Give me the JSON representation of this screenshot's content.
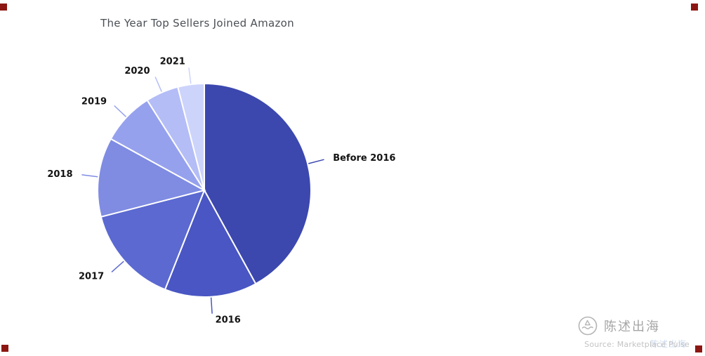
{
  "theme": {
    "background": "#ffffff",
    "title_color": "#4b4f55",
    "label_color": "#121212",
    "corner_mark": "#8c1712",
    "watermark_gray": "#a5a5a5",
    "source_gray": "#c3c3c3"
  },
  "chart_data": {
    "type": "pie",
    "title": "The Year Top Sellers Joined Amazon",
    "categories": [
      "Before 2016",
      "2016",
      "2017",
      "2018",
      "2019",
      "2020",
      "2021"
    ],
    "values": [
      42,
      14,
      15,
      12,
      8,
      5,
      4
    ],
    "unit": "%",
    "colors": [
      "#3c48ae",
      "#4956c3",
      "#5b69d1",
      "#7f8ce2",
      "#96a1ee",
      "#b4bdf6",
      "#cdd4fb"
    ],
    "start_angle_deg": 0,
    "direction": "clockwise",
    "legend": "none",
    "labels_position": "outside-with-leader-lines"
  },
  "watermark": {
    "brand": "陈述出海",
    "source": "Source: Marketplace Pulse"
  }
}
